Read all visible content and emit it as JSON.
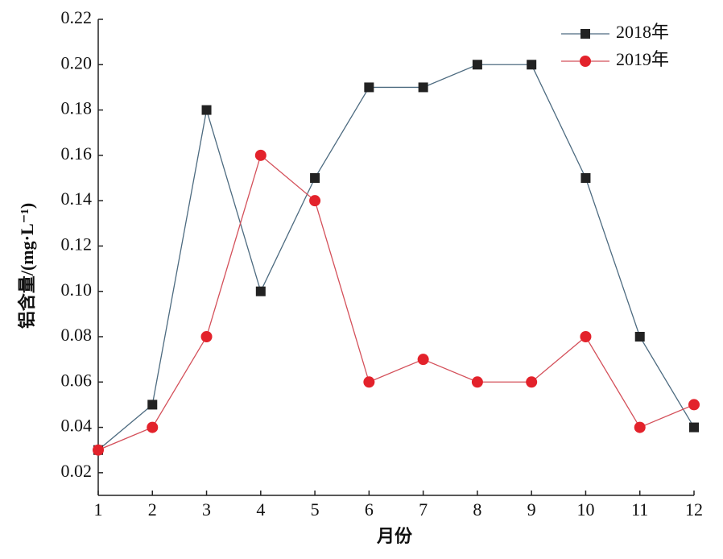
{
  "chart_data": {
    "type": "line",
    "x_label": "月份",
    "y_label": "铝含量/(mg·L⁻¹)",
    "x": [
      1,
      2,
      3,
      4,
      5,
      6,
      7,
      8,
      9,
      10,
      11,
      12
    ],
    "xlim": [
      1,
      12
    ],
    "xticks": [
      1,
      2,
      3,
      4,
      5,
      6,
      7,
      8,
      9,
      10,
      11,
      12
    ],
    "ylim": [
      0.01,
      0.22
    ],
    "yticks": [
      0.02,
      0.04,
      0.06,
      0.08,
      {
        "value": 0.1,
        "label": "0.10"
      },
      0.12,
      0.14,
      0.16,
      0.18,
      {
        "value": 0.2,
        "label": "0.20"
      },
      0.22
    ],
    "grid": false,
    "legend": "upper right",
    "series": [
      {
        "name": "2018年",
        "color": "#222222",
        "line_color": "#4d6b80",
        "marker": "square",
        "values": [
          0.03,
          0.05,
          0.18,
          0.1,
          0.15,
          0.19,
          0.19,
          0.2,
          0.2,
          0.15,
          0.08,
          0.04
        ]
      },
      {
        "name": "2019年",
        "color": "#e3222b",
        "line_color": "#d4505a",
        "marker": "circle",
        "values": [
          0.03,
          0.04,
          0.08,
          0.16,
          0.14,
          0.06,
          0.07,
          0.06,
          0.06,
          0.08,
          0.04,
          0.05
        ]
      }
    ]
  }
}
